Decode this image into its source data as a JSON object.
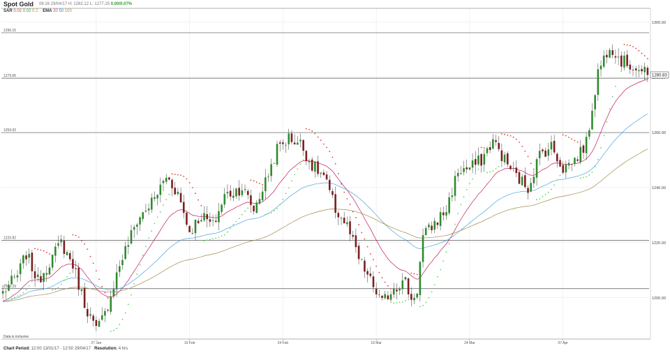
{
  "header": {
    "title": "Spot Gold",
    "ohlc_text": "06:16 29/04/17   H: 1282.12   L: 1277.25",
    "change": "0.00/0.07%"
  },
  "indicators": {
    "sar_label": "SAR",
    "sar_params": [
      "0.02",
      "0.02",
      "0.2"
    ],
    "ema_label": "EMA",
    "ema_params": [
      "20",
      "50",
      "100"
    ]
  },
  "footer": {
    "period_label": "Chart Period:",
    "period_value": "12:00 13/01/17 - 12:50 29/04/17",
    "resolution_label": "Resolution:",
    "resolution_value": "4 hrs"
  },
  "colors": {
    "up": "#2e8b2e",
    "down": "#7a1f1f",
    "sar_up": "#5fd35f",
    "sar_down": "#e23c2c",
    "ema20": "#c2185b",
    "ema50": "#4aa3df",
    "ema100": "#a08a4a",
    "hline": "#555555",
    "grid": "#e6e6e6"
  },
  "chart_data": {
    "type": "candlestick",
    "ylim": [
      1185,
      1305
    ],
    "yticks": [
      1200,
      1220,
      1240,
      1260,
      1280,
      1300
    ],
    "ytick_labels": [
      "1200.00",
      "1220.00",
      "1240.00",
      "1260.00",
      "1280.00",
      "1300.00"
    ],
    "xticks": [
      {
        "label": "27 Jan",
        "i": 32
      },
      {
        "label": "10 Feb",
        "i": 64
      },
      {
        "label": "24 Feb",
        "i": 96
      },
      {
        "label": "10 Mar",
        "i": 128
      },
      {
        "label": "24 Mar",
        "i": 160
      },
      {
        "label": "07 Apr",
        "i": 192
      }
    ],
    "hlines": [
      {
        "value": 1296.15,
        "label": "1296.15"
      },
      {
        "value": 1279.66,
        "label": "1279.66"
      },
      {
        "value": 1259.92,
        "label": "1259.92"
      },
      {
        "value": 1220.82,
        "label": "1220.82"
      },
      {
        "value": 1203.29,
        "label": "1203.29"
      }
    ],
    "current_price_label": "1280.83",
    "current_price": 1280.83,
    "annotation": "Data is inclusive",
    "n_candles": 222,
    "anchors": [
      [
        0,
        1202
      ],
      [
        5,
        1208
      ],
      [
        8,
        1216
      ],
      [
        12,
        1206
      ],
      [
        16,
        1213
      ],
      [
        20,
        1220
      ],
      [
        24,
        1212
      ],
      [
        28,
        1198
      ],
      [
        32,
        1188
      ],
      [
        35,
        1194
      ],
      [
        40,
        1212
      ],
      [
        46,
        1228
      ],
      [
        52,
        1236
      ],
      [
        56,
        1244
      ],
      [
        60,
        1238
      ],
      [
        64,
        1224
      ],
      [
        68,
        1230
      ],
      [
        72,
        1226
      ],
      [
        76,
        1237
      ],
      [
        82,
        1240
      ],
      [
        86,
        1232
      ],
      [
        90,
        1242
      ],
      [
        94,
        1254
      ],
      [
        98,
        1258
      ],
      [
        102,
        1256
      ],
      [
        106,
        1248
      ],
      [
        110,
        1244
      ],
      [
        114,
        1232
      ],
      [
        118,
        1226
      ],
      [
        122,
        1214
      ],
      [
        126,
        1206
      ],
      [
        130,
        1198
      ],
      [
        134,
        1204
      ],
      [
        138,
        1206
      ],
      [
        140,
        1199
      ],
      [
        142,
        1203
      ],
      [
        144,
        1222
      ],
      [
        148,
        1227
      ],
      [
        152,
        1232
      ],
      [
        156,
        1246
      ],
      [
        160,
        1247
      ],
      [
        164,
        1250
      ],
      [
        168,
        1257
      ],
      [
        172,
        1250
      ],
      [
        176,
        1244
      ],
      [
        180,
        1240
      ],
      [
        184,
        1252
      ],
      [
        188,
        1255
      ],
      [
        192,
        1247
      ],
      [
        196,
        1250
      ],
      [
        200,
        1256
      ],
      [
        204,
        1282
      ],
      [
        208,
        1292
      ],
      [
        212,
        1286
      ],
      [
        216,
        1284
      ],
      [
        221,
        1280.83
      ]
    ],
    "volatility": 2.2,
    "seed": 7
  }
}
